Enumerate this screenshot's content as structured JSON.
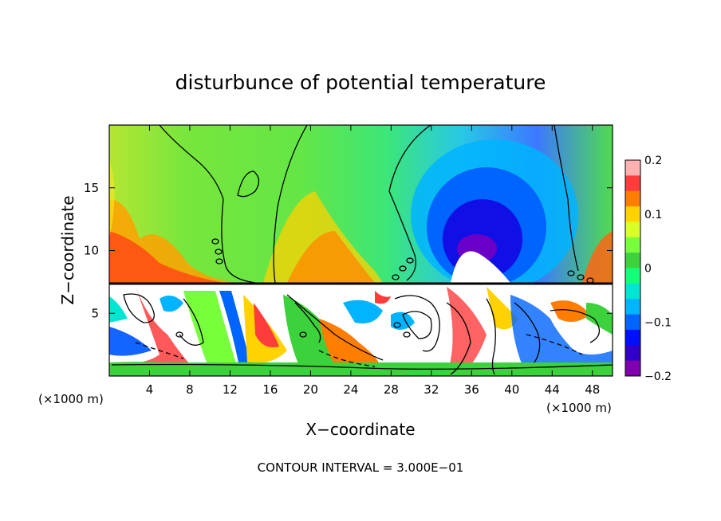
{
  "chart_data": {
    "type": "heatmap",
    "title": "disturbunce of potential temperature",
    "xlabel": "X−coordinate",
    "ylabel": "Z−coordinate",
    "x_units_left": "(×1000 m)",
    "x_units_right": "(×1000 m)",
    "xlim": [
      0,
      50
    ],
    "ylim": [
      0,
      20
    ],
    "x_ticks": [
      4,
      8,
      12,
      16,
      20,
      24,
      28,
      32,
      36,
      40,
      44,
      48
    ],
    "x_tick_labels": [
      "4",
      "8",
      "12",
      "16",
      "20",
      "24",
      "28",
      "32",
      "36",
      "40",
      "44",
      "48"
    ],
    "y_ticks": [
      5,
      10,
      15
    ],
    "y_tick_labels": [
      "5",
      "10",
      "15"
    ],
    "colorbar": {
      "range": [
        -0.2,
        0.2
      ],
      "tick_values": [
        0.2,
        0.1,
        0,
        -0.1,
        -0.2
      ],
      "tick_labels": [
        "0.2",
        "0.1",
        "0",
        "−0.1",
        "−0.2"
      ],
      "colors": [
        "#ffb0b0",
        "#ff3c3c",
        "#ff7d00",
        "#ffd200",
        "#d8ff28",
        "#78ff3c",
        "#3cd23c",
        "#14ff78",
        "#00e6d2",
        "#00b4ff",
        "#0064ff",
        "#0010ff",
        "#3200c8",
        "#8000b0"
      ]
    },
    "footer": "CONTOUR INTERVAL = 3.000E−01",
    "contour_interval": 0.3,
    "grid": false
  }
}
